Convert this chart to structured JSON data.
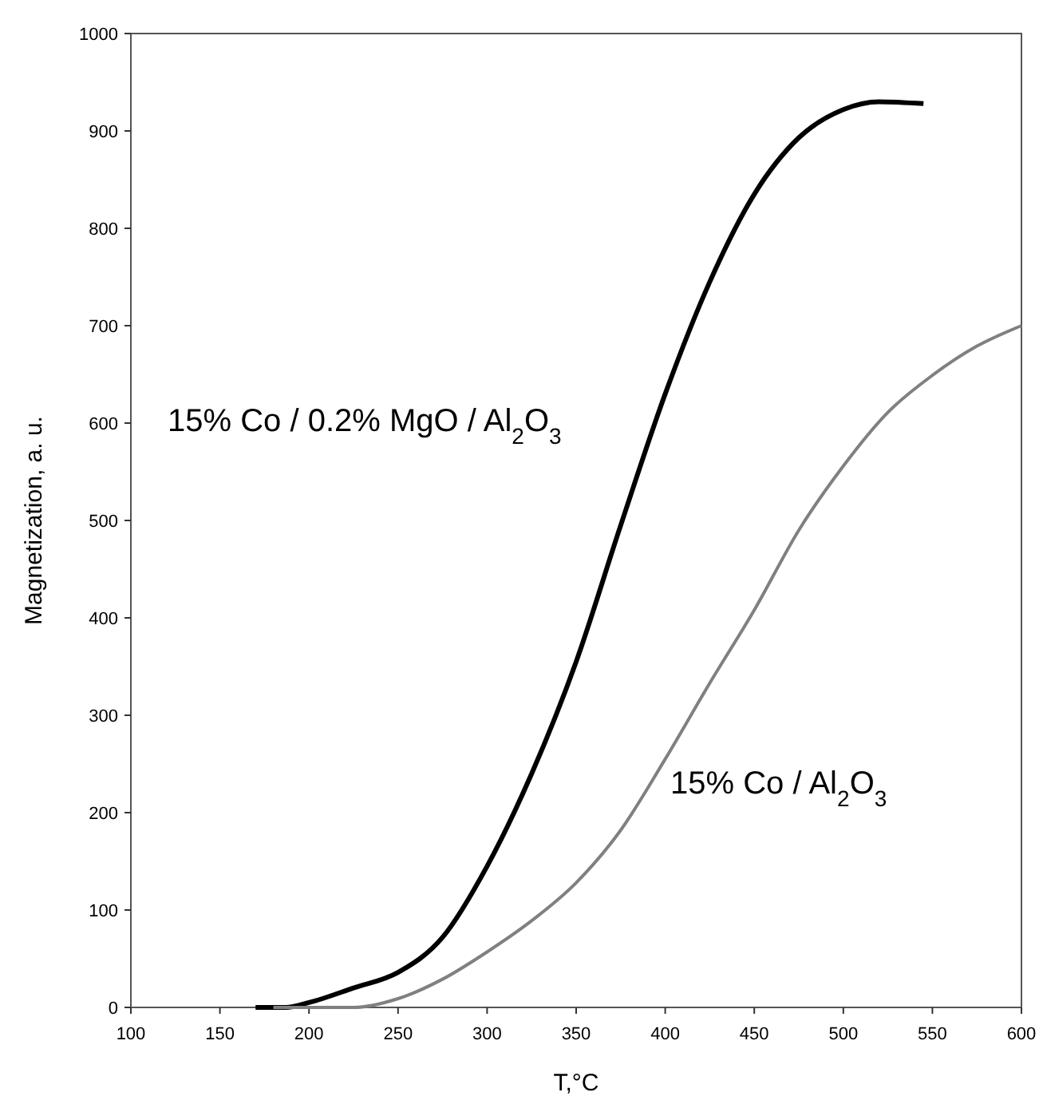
{
  "chart_data": {
    "type": "line",
    "xlabel": "T,°C",
    "ylabel": "Magnetization, a. u.",
    "xlim": [
      100,
      600
    ],
    "xticks": [
      100,
      150,
      200,
      250,
      300,
      350,
      400,
      450,
      500,
      550,
      600
    ],
    "ylim": [
      0,
      1000
    ],
    "yticks": [
      0,
      100,
      200,
      300,
      400,
      500,
      600,
      700,
      800,
      900,
      1000
    ],
    "grid": false,
    "marker": "none",
    "line_style": "solid",
    "series": [
      {
        "name": "15% Co / 0.2% MgO / Al$_{2}$O$_{3}$",
        "color": "#000000",
        "x": [
          170,
          187,
          200,
          225,
          250,
          275,
          300,
          325,
          350,
          375,
          400,
          425,
          450,
          475,
          500,
          520,
          545
        ],
        "values": [
          0,
          0,
          5,
          20,
          36,
          72,
          145,
          240,
          355,
          495,
          630,
          745,
          835,
          893,
          922,
          930,
          928
        ]
      },
      {
        "name": "15% Co / Al$_{2}$O$_{3}$",
        "color": "#808080",
        "x": [
          180,
          200,
          215,
          225,
          250,
          275,
          300,
          325,
          350,
          375,
          400,
          425,
          450,
          475,
          500,
          525,
          550,
          575,
          600
        ],
        "values": [
          0,
          0,
          0,
          0,
          9,
          29,
          57,
          89,
          128,
          182,
          255,
          333,
          408,
          490,
          556,
          611,
          649,
          679,
          700
        ]
      }
    ]
  }
}
